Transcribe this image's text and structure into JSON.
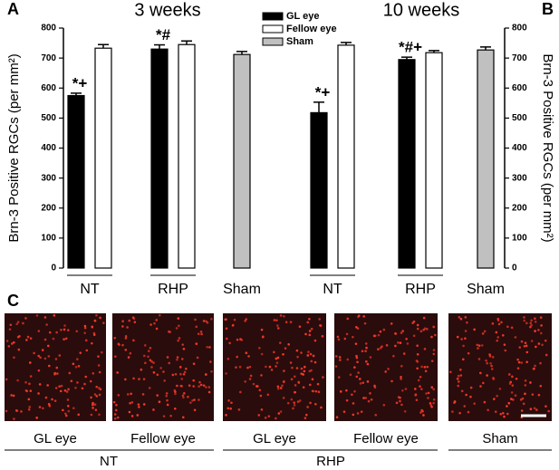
{
  "chart_data": [
    {
      "type": "bar",
      "panel_label": "A",
      "title": "3 weeks",
      "ylabel": "Brn-3 Positive RGCs (per mm²)",
      "categories": [
        "NT",
        "RHP",
        "Sham"
      ],
      "series": [
        {
          "name": "GL eye",
          "color": "#000000",
          "values": [
            575,
            730,
            null
          ],
          "errors": [
            8,
            14,
            null
          ]
        },
        {
          "name": "Fellow eye",
          "color": "#ffffff",
          "values": [
            733,
            745,
            null
          ],
          "errors": [
            12,
            12,
            null
          ]
        },
        {
          "name": "Sham",
          "color": "#c0c0c0",
          "values": [
            null,
            null,
            712
          ],
          "errors": [
            null,
            null,
            10
          ]
        }
      ],
      "annotations": [
        {
          "text": "*+",
          "series": 0,
          "category": 0
        },
        {
          "text": "*#",
          "series": 0,
          "category": 1
        }
      ],
      "ylim": [
        0,
        800
      ],
      "yticks": [
        0,
        100,
        200,
        300,
        400,
        500,
        600,
        700,
        800
      ]
    },
    {
      "type": "bar",
      "panel_label": "B",
      "title": "10 weeks",
      "ylabel": "Brn-3 Positive RGCs (per mm²)",
      "categories": [
        "NT",
        "RHP",
        "Sham"
      ],
      "series": [
        {
          "color": "#000000",
          "values": [
            518,
            695,
            null
          ],
          "errors": [
            35,
            8,
            null
          ]
        },
        {
          "color": "#ffffff",
          "values": [
            743,
            718,
            null
          ],
          "errors": [
            9,
            7,
            null
          ]
        },
        {
          "color": "#c0c0c0",
          "values": [
            null,
            null,
            727
          ],
          "errors": [
            null,
            null,
            10
          ]
        }
      ],
      "annotations": [
        {
          "text": "*+",
          "series": 0,
          "category": 0
        },
        {
          "text": "*#+",
          "series": 0,
          "category": 1
        }
      ],
      "ylim": [
        0,
        800
      ],
      "yticks": [
        0,
        100,
        200,
        300,
        400,
        500,
        600,
        700,
        800
      ]
    }
  ],
  "panel_c": {
    "label": "C",
    "images": [
      "GL eye",
      "Fellow eye",
      "GL eye",
      "Fellow eye",
      "Sham"
    ],
    "groups": [
      "NT",
      "RHP"
    ]
  }
}
